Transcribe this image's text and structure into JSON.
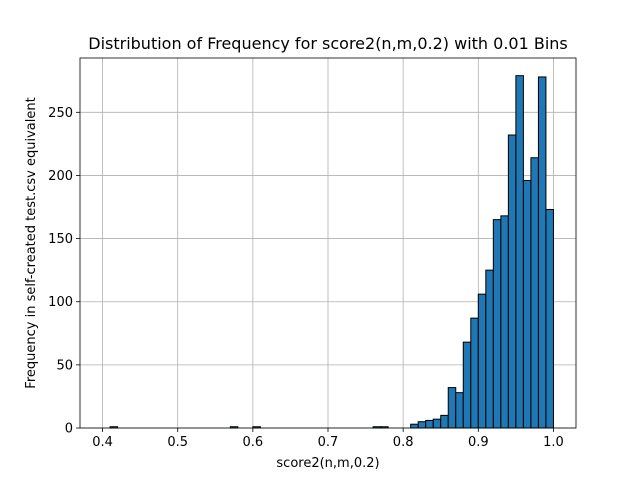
{
  "chart_data": {
    "type": "bar",
    "title": "Distribution of Frequency for score2(n,m,0.2) with 0.01 Bins",
    "xlabel": "score2(n,m,0.2)",
    "ylabel": "Frequency in self-created test.csv equivalent",
    "xlim": [
      0.37,
      1.03
    ],
    "ylim": [
      0,
      293
    ],
    "bin_width": 0.01,
    "x_ticks": [
      0.4,
      0.5,
      0.6,
      0.7,
      0.8,
      0.9,
      1.0
    ],
    "x_tick_labels": [
      "0.4",
      "0.5",
      "0.6",
      "0.7",
      "0.8",
      "0.9",
      "1.0"
    ],
    "y_ticks": [
      0,
      50,
      100,
      150,
      200,
      250
    ],
    "y_tick_labels": [
      "0",
      "50",
      "100",
      "150",
      "200",
      "250"
    ],
    "grid": true,
    "bar_color": "#1f77b4",
    "edge_color": "#000000",
    "bins": [
      {
        "x": 0.41,
        "value": 1
      },
      {
        "x": 0.57,
        "value": 1
      },
      {
        "x": 0.6,
        "value": 1
      },
      {
        "x": 0.76,
        "value": 1
      },
      {
        "x": 0.77,
        "value": 1
      },
      {
        "x": 0.81,
        "value": 3
      },
      {
        "x": 0.82,
        "value": 5
      },
      {
        "x": 0.83,
        "value": 6
      },
      {
        "x": 0.84,
        "value": 7
      },
      {
        "x": 0.85,
        "value": 10
      },
      {
        "x": 0.86,
        "value": 32
      },
      {
        "x": 0.87,
        "value": 28
      },
      {
        "x": 0.88,
        "value": 68
      },
      {
        "x": 0.89,
        "value": 87
      },
      {
        "x": 0.9,
        "value": 106
      },
      {
        "x": 0.91,
        "value": 125
      },
      {
        "x": 0.92,
        "value": 165
      },
      {
        "x": 0.93,
        "value": 168
      },
      {
        "x": 0.94,
        "value": 232
      },
      {
        "x": 0.95,
        "value": 279
      },
      {
        "x": 0.96,
        "value": 196
      },
      {
        "x": 0.97,
        "value": 214
      },
      {
        "x": 0.98,
        "value": 278
      },
      {
        "x": 0.99,
        "value": 173
      }
    ]
  }
}
